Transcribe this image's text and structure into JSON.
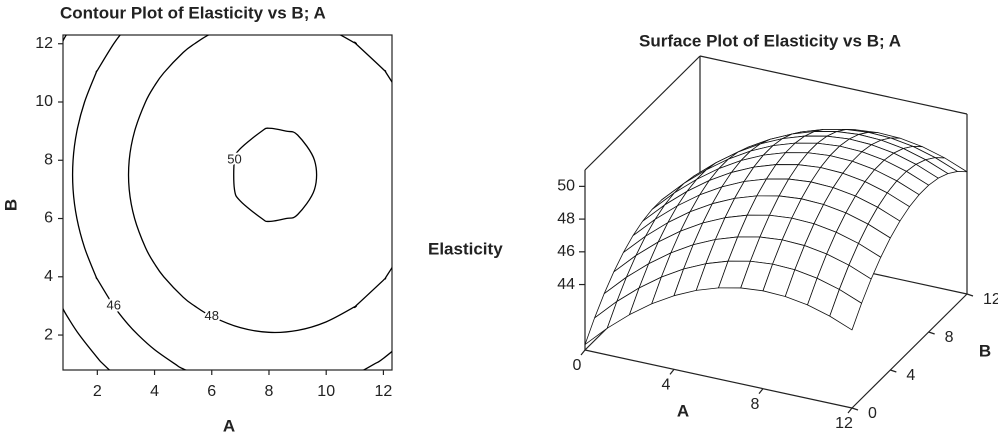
{
  "chart_data": [
    {
      "type": "contour",
      "title": "Contour Plot of Elasticity vs B; A",
      "xlabel": "A",
      "ylabel": "B",
      "xlim": [
        0.8,
        12.3
      ],
      "ylim": [
        0.8,
        12.3
      ],
      "xticks": [
        2,
        4,
        6,
        8,
        10,
        12
      ],
      "yticks": [
        2,
        4,
        6,
        8,
        10,
        12
      ],
      "levels": [
        44,
        46,
        48,
        50
      ],
      "color": "#000000",
      "x": [
        0,
        1,
        2,
        3,
        4,
        5,
        6,
        7,
        8,
        9,
        10,
        11,
        12,
        13
      ],
      "y": [
        0,
        1,
        2,
        3,
        4,
        5,
        6,
        7,
        8,
        9,
        10,
        11,
        12,
        13
      ],
      "z": [
        [
          40.33,
          41.63,
          42.75,
          43.71,
          44.5,
          45.12,
          45.57,
          45.86,
          45.98,
          45.93,
          45.71,
          45.32,
          44.77,
          44.05
        ],
        [
          41.38,
          42.68,
          43.8,
          44.76,
          45.55,
          46.17,
          46.62,
          46.91,
          47.03,
          46.98,
          46.76,
          46.37,
          45.82,
          45.1
        ],
        [
          42.28,
          43.58,
          44.7,
          45.66,
          46.45,
          47.07,
          47.52,
          47.81,
          47.93,
          47.88,
          47.66,
          47.27,
          46.72,
          46.0
        ],
        [
          43.03,
          44.33,
          45.45,
          46.41,
          47.2,
          47.82,
          48.27,
          48.56,
          48.68,
          48.63,
          48.41,
          48.02,
          47.47,
          46.75
        ],
        [
          43.63,
          44.93,
          46.05,
          47.01,
          47.8,
          48.42,
          48.87,
          49.16,
          49.28,
          49.23,
          49.01,
          48.62,
          48.07,
          47.35
        ],
        [
          44.08,
          45.38,
          46.5,
          47.46,
          48.25,
          48.87,
          49.32,
          49.61,
          49.73,
          49.68,
          49.46,
          49.07,
          48.52,
          47.8
        ],
        [
          44.38,
          45.68,
          46.8,
          47.76,
          48.55,
          49.17,
          49.62,
          49.91,
          50.03,
          49.98,
          49.76,
          49.37,
          48.82,
          48.1
        ],
        [
          44.53,
          45.83,
          46.95,
          47.91,
          48.7,
          49.32,
          49.77,
          50.06,
          50.18,
          50.13,
          49.91,
          49.52,
          48.97,
          48.25
        ],
        [
          44.53,
          45.83,
          46.95,
          47.91,
          48.7,
          49.32,
          49.77,
          50.06,
          50.18,
          50.13,
          49.91,
          49.52,
          48.97,
          48.25
        ],
        [
          44.38,
          45.68,
          46.8,
          47.76,
          48.55,
          49.17,
          49.62,
          49.91,
          50.03,
          49.98,
          49.76,
          49.37,
          48.82,
          48.1
        ],
        [
          44.08,
          45.38,
          46.5,
          47.46,
          48.25,
          48.87,
          49.32,
          49.61,
          49.73,
          49.68,
          49.46,
          49.07,
          48.52,
          47.8
        ],
        [
          43.63,
          44.93,
          46.05,
          47.01,
          47.8,
          48.42,
          48.87,
          49.16,
          49.28,
          49.23,
          49.01,
          48.62,
          48.07,
          47.35
        ],
        [
          43.03,
          44.33,
          45.45,
          46.41,
          47.2,
          47.82,
          48.27,
          48.56,
          48.68,
          48.63,
          48.41,
          48.02,
          47.47,
          46.75
        ],
        [
          42.28,
          43.58,
          44.7,
          45.66,
          46.45,
          47.07,
          47.52,
          47.81,
          47.93,
          47.88,
          47.66,
          47.27,
          46.72,
          46.0
        ]
      ]
    },
    {
      "type": "surface",
      "title": "Surface Plot of Elasticity vs B; A",
      "xlabel": "A",
      "ylabel": "B",
      "zlabel": "Elasticity",
      "xlim": [
        0,
        12
      ],
      "ylim": [
        0,
        12
      ],
      "zlim": [
        40,
        51
      ],
      "xticks": [
        0,
        4,
        8,
        12
      ],
      "yticks": [
        0,
        4,
        8,
        12
      ],
      "zticks": [
        44,
        46,
        48,
        50
      ],
      "color": "#ffffff",
      "x": [
        0,
        1,
        2,
        3,
        4,
        5,
        6,
        7,
        8,
        9,
        10,
        11,
        12
      ],
      "y": [
        0,
        1,
        2,
        3,
        4,
        5,
        6,
        7,
        8,
        9,
        10,
        11,
        12
      ],
      "z": [
        [
          40.33,
          41.63,
          42.75,
          43.71,
          44.5,
          45.12,
          45.57,
          45.86,
          45.98,
          45.93,
          45.71,
          45.32,
          44.77
        ],
        [
          41.38,
          42.68,
          43.8,
          44.76,
          45.55,
          46.17,
          46.62,
          46.91,
          47.03,
          46.98,
          46.76,
          46.37,
          45.82
        ],
        [
          42.28,
          43.58,
          44.7,
          45.66,
          46.45,
          47.07,
          47.52,
          47.81,
          47.93,
          47.88,
          47.66,
          47.27,
          46.72
        ],
        [
          43.03,
          44.33,
          45.45,
          46.41,
          47.2,
          47.82,
          48.27,
          48.56,
          48.68,
          48.63,
          48.41,
          48.02,
          47.47
        ],
        [
          43.63,
          44.93,
          46.05,
          47.01,
          47.8,
          48.42,
          48.87,
          49.16,
          49.28,
          49.23,
          49.01,
          48.62,
          48.07
        ],
        [
          44.08,
          45.38,
          46.5,
          47.46,
          48.25,
          48.87,
          49.32,
          49.61,
          49.73,
          49.68,
          49.46,
          49.07,
          48.52
        ],
        [
          44.38,
          45.68,
          46.8,
          47.76,
          48.55,
          49.17,
          49.62,
          49.91,
          50.03,
          49.98,
          49.76,
          49.37,
          48.82
        ],
        [
          44.53,
          45.83,
          46.95,
          47.91,
          48.7,
          49.32,
          49.77,
          50.06,
          50.18,
          50.13,
          49.91,
          49.52,
          48.97
        ],
        [
          44.53,
          45.83,
          46.95,
          47.91,
          48.7,
          49.32,
          49.77,
          50.06,
          50.18,
          50.13,
          49.91,
          49.52,
          48.97
        ],
        [
          44.38,
          45.68,
          46.8,
          47.76,
          48.55,
          49.17,
          49.62,
          49.91,
          50.03,
          49.98,
          49.76,
          49.37,
          48.82
        ],
        [
          44.08,
          45.38,
          46.5,
          47.46,
          48.25,
          48.87,
          49.32,
          49.61,
          49.73,
          49.68,
          49.46,
          49.07,
          48.52
        ],
        [
          43.63,
          44.93,
          46.05,
          47.01,
          47.8,
          48.42,
          48.87,
          49.16,
          49.28,
          49.23,
          49.01,
          48.62,
          48.07
        ],
        [
          43.03,
          44.33,
          45.45,
          46.41,
          47.2,
          47.82,
          48.27,
          48.56,
          48.68,
          48.63,
          48.41,
          48.02,
          47.47
        ]
      ]
    }
  ]
}
